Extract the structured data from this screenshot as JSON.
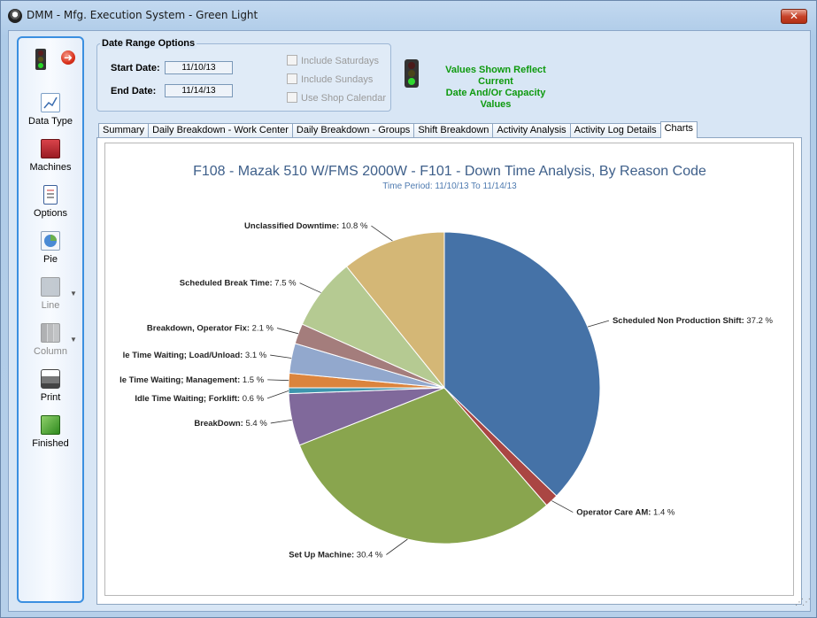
{
  "window": {
    "title": "DMM - Mfg. Execution System - Green Light",
    "close_label": "✕"
  },
  "sidebar": {
    "items": [
      {
        "label": "Data Type",
        "icon": "chart-icon",
        "enabled": true
      },
      {
        "label": "Machines",
        "icon": "machines-icon",
        "enabled": true
      },
      {
        "label": "Options",
        "icon": "options-icon",
        "enabled": true
      },
      {
        "label": "Pie",
        "icon": "pie-icon",
        "enabled": true
      },
      {
        "label": "Line",
        "icon": "line-chart-icon",
        "enabled": false
      },
      {
        "label": "Column",
        "icon": "column-chart-icon",
        "enabled": false
      },
      {
        "label": "Print",
        "icon": "printer-icon",
        "enabled": true
      },
      {
        "label": "Finished",
        "icon": "finished-icon",
        "enabled": true
      }
    ]
  },
  "date_range": {
    "group_title": "Date Range Options",
    "start_label": "Start Date:",
    "start_value": "11/10/13",
    "end_label": "End Date:",
    "end_value": "11/14/13",
    "include_saturdays": "Include Saturdays",
    "include_sundays": "Include Sundays",
    "use_shop_calendar": "Use Shop Calendar"
  },
  "values_note": {
    "line1": "Values Shown Reflect Current",
    "line2": "Date And/Or Capacity Values"
  },
  "tabs": [
    {
      "label": "Summary",
      "active": false
    },
    {
      "label": "Daily Breakdown - Work Center",
      "active": false
    },
    {
      "label": "Daily Breakdown - Groups",
      "active": false
    },
    {
      "label": "Shift Breakdown",
      "active": false
    },
    {
      "label": "Activity Analysis",
      "active": false
    },
    {
      "label": "Activity Log Details",
      "active": false
    },
    {
      "label": "Charts",
      "active": true
    }
  ],
  "chart_data": {
    "type": "pie",
    "title": "F108 - Mazak 510 W/FMS 2000W - F101 - Down Time Analysis, By Reason Code",
    "subtitle": "Time Period: 11/10/13 To 11/14/13",
    "slices": [
      {
        "label": "Scheduled Non Production Shift",
        "value": 37.2,
        "color": "#4572a7"
      },
      {
        "label": "Operator Care AM",
        "value": 1.4,
        "color": "#aa4643"
      },
      {
        "label": "Set Up Machine",
        "value": 30.4,
        "color": "#89a54e"
      },
      {
        "label": "BreakDown",
        "value": 5.4,
        "color": "#80699b"
      },
      {
        "label": "Idle Time Waiting; Forklift",
        "value": 0.6,
        "color": "#3d96ae"
      },
      {
        "label": "Idle Time Waiting; Management",
        "value": 1.5,
        "color": "#db843d"
      },
      {
        "label": "Idle Time Waiting; Load/Unload",
        "value": 3.1,
        "color": "#92a8cd"
      },
      {
        "label": "Breakdown, Operator Fix",
        "value": 2.1,
        "color": "#a47d7c"
      },
      {
        "label": "Scheduled Break Time",
        "value": 7.5,
        "color": "#b5ca92"
      },
      {
        "label": "Unclassified Downtime",
        "value": 10.8,
        "color": "#d4b776"
      }
    ],
    "display_labels": [
      "Scheduled Non Production Shift",
      "Operator Care AM",
      "Set Up Machine",
      "BreakDown",
      "Idle Time Waiting; Forklift",
      "le Time Waiting; Management",
      "le Time Waiting; Load/Unload",
      "Breakdown, Operator Fix",
      "Scheduled Break Time",
      "Unclassified Downtime"
    ],
    "value_suffix": " %",
    "title_color": "#3e5f8a",
    "subtitle_color": "#4f7bb0"
  }
}
